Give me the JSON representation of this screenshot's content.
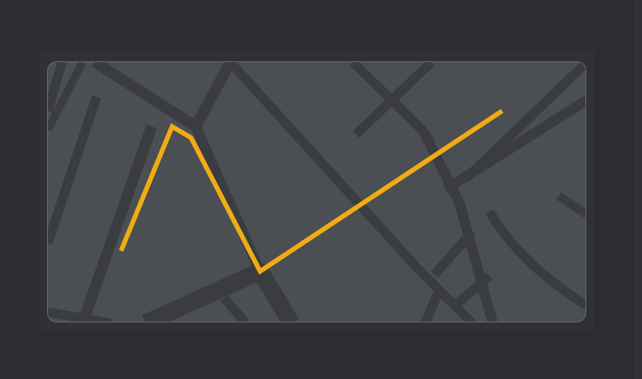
{
  "map": {
    "colors": {
      "page_background": "#2b2d30",
      "panel": "#2f3134",
      "land": "#4b4e52",
      "roads": "#3a3c3f",
      "route": "#f0ac15",
      "border": "#6a6d71"
    },
    "route_icon": "route-line"
  }
}
